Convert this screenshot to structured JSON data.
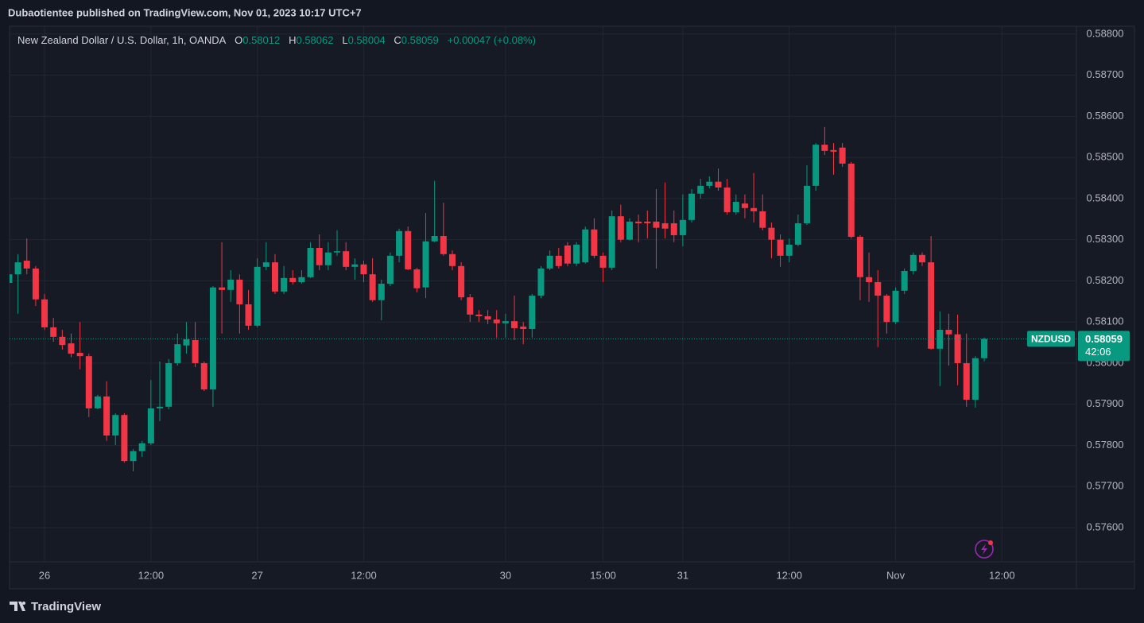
{
  "header": {
    "title": "Dubaotientee published on TradingView.com, Nov 01, 2023 10:17 UTC+7"
  },
  "footer": {
    "brand": "TradingView"
  },
  "chart_data": {
    "type": "candlestick",
    "title": "New Zealand Dollar / U.S. Dollar, 1h, OANDA",
    "ohlc_labels": [
      "O",
      "H",
      "L",
      "C"
    ],
    "change_label": "+0.00047 (+0.08%)",
    "symbol": "NZDUSD",
    "countdown": "42:06",
    "up_color": "#089981",
    "down_color": "#f23645",
    "grid": true,
    "ylim": [
      0.57517,
      0.58819
    ],
    "yticks": [
      {
        "value": 0.576,
        "label": "0.57600"
      },
      {
        "value": 0.577,
        "label": "0.57700"
      },
      {
        "value": 0.578,
        "label": "0.57800"
      },
      {
        "value": 0.579,
        "label": "0.57900"
      },
      {
        "value": 0.58,
        "label": "0.58000"
      },
      {
        "value": 0.581,
        "label": "0.58100"
      },
      {
        "value": 0.582,
        "label": "0.58200"
      },
      {
        "value": 0.583,
        "label": "0.58300"
      },
      {
        "value": 0.584,
        "label": "0.58400"
      },
      {
        "value": 0.585,
        "label": "0.58500"
      },
      {
        "value": 0.586,
        "label": "0.58600"
      },
      {
        "value": 0.587,
        "label": "0.58700"
      },
      {
        "value": 0.588,
        "label": "0.58800"
      }
    ],
    "xlim": [
      0.05,
      120.4
    ],
    "xticks": [
      {
        "value": 4,
        "label": "26"
      },
      {
        "value": 16,
        "label": "12:00"
      },
      {
        "value": 28,
        "label": "27"
      },
      {
        "value": 40,
        "label": "12:00"
      },
      {
        "value": 56,
        "label": "30"
      },
      {
        "value": 67,
        "label": "15:00"
      },
      {
        "value": 76,
        "label": "31"
      },
      {
        "value": 88,
        "label": "12:00"
      },
      {
        "value": 100,
        "label": "Nov"
      },
      {
        "value": 112,
        "label": "12:00"
      }
    ],
    "open": [
      0.58195,
      0.58216,
      0.58249,
      0.5823,
      0.58155,
      0.58087,
      0.58064,
      0.58048,
      0.58025,
      0.58017,
      0.5789,
      0.57919,
      0.57824,
      0.57874,
      0.57762,
      0.57786,
      0.57805,
      0.5789,
      0.57894,
      0.58,
      0.58043,
      0.58056,
      0.58,
      0.57936,
      0.58184,
      0.58178,
      0.58203,
      0.58143,
      0.58091,
      0.58234,
      0.58245,
      0.58174,
      0.58207,
      0.58197,
      0.58209,
      0.5828,
      0.58238,
      0.58269,
      0.58272,
      0.58234,
      0.5824,
      0.58216,
      0.58153,
      0.58193,
      0.58261,
      0.58321,
      0.58228,
      0.58184,
      0.58296,
      0.58309,
      0.58265,
      0.58236,
      0.5816,
      0.58118,
      0.58114,
      0.58106,
      0.58097,
      0.58102,
      0.58089,
      0.58083,
      0.58164,
      0.5823,
      0.58261,
      0.58286,
      0.58242,
      0.58245,
      0.58325,
      0.58261,
      0.58232,
      0.58357,
      0.583,
      0.58344,
      0.58344,
      0.58344,
      0.5834,
      0.5834,
      0.58311,
      0.58348,
      0.58412,
      0.58431,
      0.58441,
      0.58427,
      0.58367,
      0.58388,
      0.58377,
      0.58369,
      0.58329,
      0.583,
      0.58261,
      0.58288,
      0.5834,
      0.58431,
      0.58531,
      0.58518,
      0.58524,
      0.58485,
      0.58307,
      0.58209,
      0.58197,
      0.58164,
      0.581,
      0.58176,
      0.58224,
      0.58263,
      0.58245,
      0.58035,
      0.58081,
      0.5807,
      0.58,
      0.57911,
      0.58012
    ],
    "high": [
      0.58265,
      0.58265,
      0.58303,
      0.58236,
      0.58168,
      0.5811,
      0.58081,
      0.58072,
      0.581,
      0.58023,
      0.57923,
      0.57956,
      0.57878,
      0.57878,
      0.57791,
      0.57811,
      0.57959,
      0.58004,
      0.5801,
      0.58072,
      0.581,
      0.581,
      0.58004,
      0.58187,
      0.58294,
      0.58226,
      0.58216,
      0.58178,
      0.58255,
      0.58294,
      0.58265,
      0.58236,
      0.58226,
      0.58226,
      0.58294,
      0.58313,
      0.58294,
      0.58323,
      0.58294,
      0.58255,
      0.58249,
      0.58255,
      0.58203,
      0.58269,
      0.58327,
      0.58332,
      0.58232,
      0.58365,
      0.58443,
      0.5839,
      0.58274,
      0.58245,
      0.58168,
      0.58129,
      0.58129,
      0.58129,
      0.5812,
      0.58164,
      0.581,
      0.58168,
      0.58236,
      0.58274,
      0.5828,
      0.58294,
      0.58294,
      0.58332,
      0.58352,
      0.58269,
      0.58371,
      0.58385,
      0.58352,
      0.58361,
      0.58371,
      0.58423,
      0.58439,
      0.58371,
      0.5841,
      0.58423,
      0.58448,
      0.58454,
      0.58473,
      0.58448,
      0.5841,
      0.5841,
      0.58462,
      0.5841,
      0.58342,
      0.58313,
      0.58303,
      0.58361,
      0.58481,
      0.58535,
      0.58574,
      0.58535,
      0.58535,
      0.58489,
      0.58311,
      0.58269,
      0.58226,
      0.58168,
      0.58184,
      0.5823,
      0.58269,
      0.58269,
      0.58309,
      0.58126,
      0.5812,
      0.58118,
      0.58072,
      0.58017,
      0.58062
    ],
    "low": [
      0.58106,
      0.5812,
      0.58216,
      0.58139,
      0.58081,
      0.58052,
      0.58033,
      0.58014,
      0.57985,
      0.57869,
      0.57888,
      0.57811,
      0.57801,
      0.57758,
      0.57737,
      0.57772,
      0.57801,
      0.57859,
      0.57888,
      0.57994,
      0.58023,
      0.5799,
      0.57932,
      0.57894,
      0.58072,
      0.58149,
      0.58072,
      0.58081,
      0.58087,
      0.58226,
      0.58168,
      0.58168,
      0.58191,
      0.58193,
      0.58207,
      0.58226,
      0.58226,
      0.58261,
      0.58226,
      0.58203,
      0.58197,
      0.58149,
      0.58104,
      0.58187,
      0.58245,
      0.58226,
      0.58172,
      0.58158,
      0.58294,
      0.58261,
      0.58226,
      0.58153,
      0.581,
      0.581,
      0.58095,
      0.58062,
      0.58062,
      0.58056,
      0.58046,
      0.58062,
      0.58158,
      0.58226,
      0.5823,
      0.58236,
      0.58236,
      0.58242,
      0.58255,
      0.58197,
      0.58226,
      0.58294,
      0.58298,
      0.58294,
      0.58303,
      0.5823,
      0.58303,
      0.58294,
      0.58284,
      0.58342,
      0.584,
      0.58425,
      0.58419,
      0.58361,
      0.58361,
      0.58352,
      0.58342,
      0.58323,
      0.58255,
      0.58234,
      0.58245,
      0.58284,
      0.58336,
      0.58419,
      0.58506,
      0.58458,
      0.58477,
      0.58303,
      0.58153,
      0.58149,
      0.58039,
      0.58072,
      0.58095,
      0.58168,
      0.58216,
      0.58236,
      0.58033,
      0.57944,
      0.57994,
      0.57946,
      0.57894,
      0.57892,
      0.58004
    ],
    "close": [
      0.58216,
      0.58245,
      0.5823,
      0.58155,
      0.58087,
      0.58064,
      0.58044,
      0.58023,
      0.58017,
      0.5789,
      0.57919,
      0.57824,
      0.57874,
      0.57762,
      0.57786,
      0.57805,
      0.5789,
      0.57894,
      0.58,
      0.58046,
      0.58058,
      0.58,
      0.57936,
      0.58184,
      0.58178,
      0.58203,
      0.58143,
      0.58091,
      0.58234,
      0.58245,
      0.58174,
      0.58207,
      0.58197,
      0.58209,
      0.5828,
      0.58238,
      0.58269,
      0.58272,
      0.58234,
      0.5824,
      0.58216,
      0.58153,
      0.58193,
      0.58261,
      0.58321,
      0.58228,
      0.58182,
      0.58296,
      0.58309,
      0.58265,
      0.58236,
      0.5816,
      0.58118,
      0.58114,
      0.58106,
      0.58097,
      0.58102,
      0.58085,
      0.58083,
      0.58164,
      0.5823,
      0.58261,
      0.58236,
      0.58242,
      0.58288,
      0.58325,
      0.58261,
      0.58232,
      0.58357,
      0.583,
      0.58344,
      0.5834,
      0.5834,
      0.58329,
      0.58327,
      0.58311,
      0.58348,
      0.58412,
      0.58431,
      0.58441,
      0.58427,
      0.58367,
      0.58392,
      0.58377,
      0.58369,
      0.58329,
      0.583,
      0.58261,
      0.58288,
      0.5834,
      0.58431,
      0.58531,
      0.58516,
      0.58514,
      0.58485,
      0.58307,
      0.58209,
      0.58197,
      0.58164,
      0.581,
      0.58176,
      0.58224,
      0.58263,
      0.58245,
      0.58035,
      0.58081,
      0.5807,
      0.58,
      0.57911,
      0.58012,
      0.58059
    ]
  }
}
